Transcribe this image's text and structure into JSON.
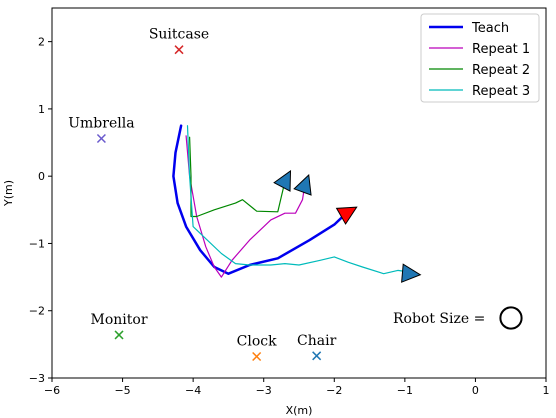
{
  "chart_data": {
    "type": "line",
    "xlabel": "X(m)",
    "ylabel": "Y(m)",
    "xlim": [
      -6,
      1
    ],
    "ylim": [
      -3,
      2.5
    ],
    "xticks": [
      -6,
      -5,
      -4,
      -3,
      -2,
      -1,
      0,
      1
    ],
    "yticks": [
      -3,
      -2,
      -1,
      0,
      1,
      2
    ],
    "grid": false,
    "legend_position": "top-right",
    "series": [
      {
        "name": "Teach",
        "color": "#0000ee",
        "points": [
          [
            -4.17,
            0.75
          ],
          [
            -4.25,
            0.35
          ],
          [
            -4.28,
            0.0
          ],
          [
            -4.22,
            -0.4
          ],
          [
            -4.1,
            -0.75
          ],
          [
            -3.9,
            -1.1
          ],
          [
            -3.7,
            -1.35
          ],
          [
            -3.5,
            -1.45
          ],
          [
            -3.2,
            -1.32
          ],
          [
            -2.8,
            -1.22
          ],
          [
            -2.35,
            -0.95
          ],
          [
            -2.0,
            -0.72
          ],
          [
            -1.83,
            -0.55
          ]
        ]
      },
      {
        "name": "Repeat 1",
        "color": "#bb00bb",
        "points": [
          [
            -4.1,
            0.6
          ],
          [
            -4.05,
            0.0
          ],
          [
            -3.95,
            -0.6
          ],
          [
            -3.82,
            -1.05
          ],
          [
            -3.7,
            -1.35
          ],
          [
            -3.6,
            -1.5
          ],
          [
            -3.45,
            -1.25
          ],
          [
            -3.2,
            -0.95
          ],
          [
            -2.9,
            -0.65
          ],
          [
            -2.7,
            -0.55
          ],
          [
            -2.55,
            -0.55
          ],
          [
            -2.45,
            -0.35
          ],
          [
            -2.42,
            -0.15
          ]
        ]
      },
      {
        "name": "Repeat 2",
        "color": "#008800",
        "points": [
          [
            -4.05,
            0.58
          ],
          [
            -4.03,
            0.0
          ],
          [
            -4.03,
            -0.6
          ],
          [
            -3.95,
            -0.6
          ],
          [
            -3.7,
            -0.5
          ],
          [
            -3.4,
            -0.4
          ],
          [
            -3.3,
            -0.35
          ],
          [
            -3.1,
            -0.52
          ],
          [
            -2.8,
            -0.53
          ],
          [
            -2.75,
            -0.3
          ],
          [
            -2.7,
            -0.08
          ]
        ]
      },
      {
        "name": "Repeat 3",
        "color": "#00bbbb",
        "points": [
          [
            -4.08,
            0.75
          ],
          [
            -4.05,
            0.0
          ],
          [
            -4.0,
            -0.75
          ],
          [
            -3.85,
            -0.9
          ],
          [
            -3.6,
            -1.15
          ],
          [
            -3.4,
            -1.3
          ],
          [
            -3.2,
            -1.32
          ],
          [
            -2.9,
            -1.32
          ],
          [
            -2.7,
            -1.3
          ],
          [
            -2.5,
            -1.32
          ],
          [
            -2.2,
            -1.25
          ],
          [
            -2.0,
            -1.2
          ],
          [
            -1.8,
            -1.28
          ],
          [
            -1.6,
            -1.35
          ],
          [
            -1.3,
            -1.45
          ],
          [
            -1.1,
            -1.4
          ],
          [
            -0.9,
            -1.43
          ]
        ]
      }
    ],
    "end_markers": [
      {
        "x": -1.83,
        "y": -0.55,
        "angle": 30,
        "color": "#ff0000"
      },
      {
        "x": -0.95,
        "y": -1.45,
        "angle": -5,
        "color": "#1f77b4"
      },
      {
        "x": -2.7,
        "y": -0.08,
        "angle": 62,
        "color": "#1f77b4"
      },
      {
        "x": -2.42,
        "y": -0.15,
        "angle": 70,
        "color": "#1f77b4"
      }
    ],
    "landmarks": [
      {
        "label": "Suitcase",
        "x": -4.2,
        "y": 1.88,
        "color": "#d62728"
      },
      {
        "label": "Umbrella",
        "x": -5.3,
        "y": 0.56,
        "color": "#6a5acd"
      },
      {
        "label": "Monitor",
        "x": -5.05,
        "y": -2.36,
        "color": "#2ca02c"
      },
      {
        "label": "Clock",
        "x": -3.1,
        "y": -2.68,
        "color": "#ff7f0e"
      },
      {
        "label": "Chair",
        "x": -2.25,
        "y": -2.67,
        "color": "#1f77b4"
      }
    ],
    "robot_size_label": "Robot Size =",
    "robot_radius_m": 0.15
  }
}
